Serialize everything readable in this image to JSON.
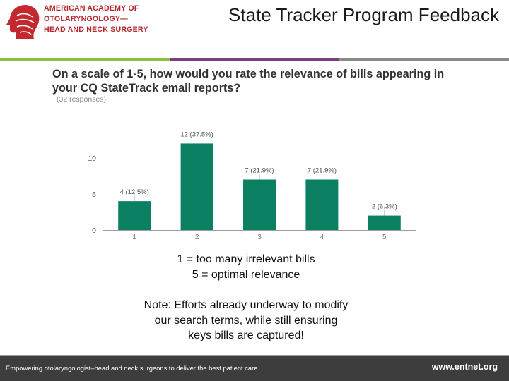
{
  "header": {
    "org_lines": [
      "AMERICAN ACADEMY OF",
      "OTOLARYNGOLOGY—",
      "HEAD AND NECK SURGERY"
    ],
    "title": "State Tracker Program Feedback",
    "logo_icon": "head-profile-logo-icon",
    "stripe_colors": [
      "#8cbf3f",
      "#7d3f7b",
      "#8a8a8a"
    ]
  },
  "question": {
    "text": "On a scale of 1-5, how would you rate the relevance of bills appearing in your CQ StateTrack email reports?",
    "responses": "(32 responses)"
  },
  "chart_data": {
    "type": "bar",
    "categories": [
      "1",
      "2",
      "3",
      "4",
      "5"
    ],
    "values": [
      4,
      12,
      7,
      7,
      2
    ],
    "data_labels": [
      "4 (12.5%)",
      "12 (37.5%)",
      "7 (21.9%)",
      "7 (21.9%)",
      "2 (6.3%)"
    ],
    "ylim": [
      0,
      14
    ],
    "yticks": [
      0,
      5,
      10
    ],
    "bar_color": "#0b7f61",
    "grid": false,
    "title": "",
    "xlabel": "",
    "ylabel": ""
  },
  "legend": {
    "line1": "1 = too many irrelevant bills",
    "line2": "5 = optimal relevance"
  },
  "note": {
    "line1": "Note: Efforts already underway to modify",
    "line2": "our search terms, while still ensuring",
    "line3": "keys bills are captured!"
  },
  "footer": {
    "tagline": "Empowering otolaryngologist–head and neck surgeons to deliver the best patient care",
    "website": "www.entnet.org"
  }
}
